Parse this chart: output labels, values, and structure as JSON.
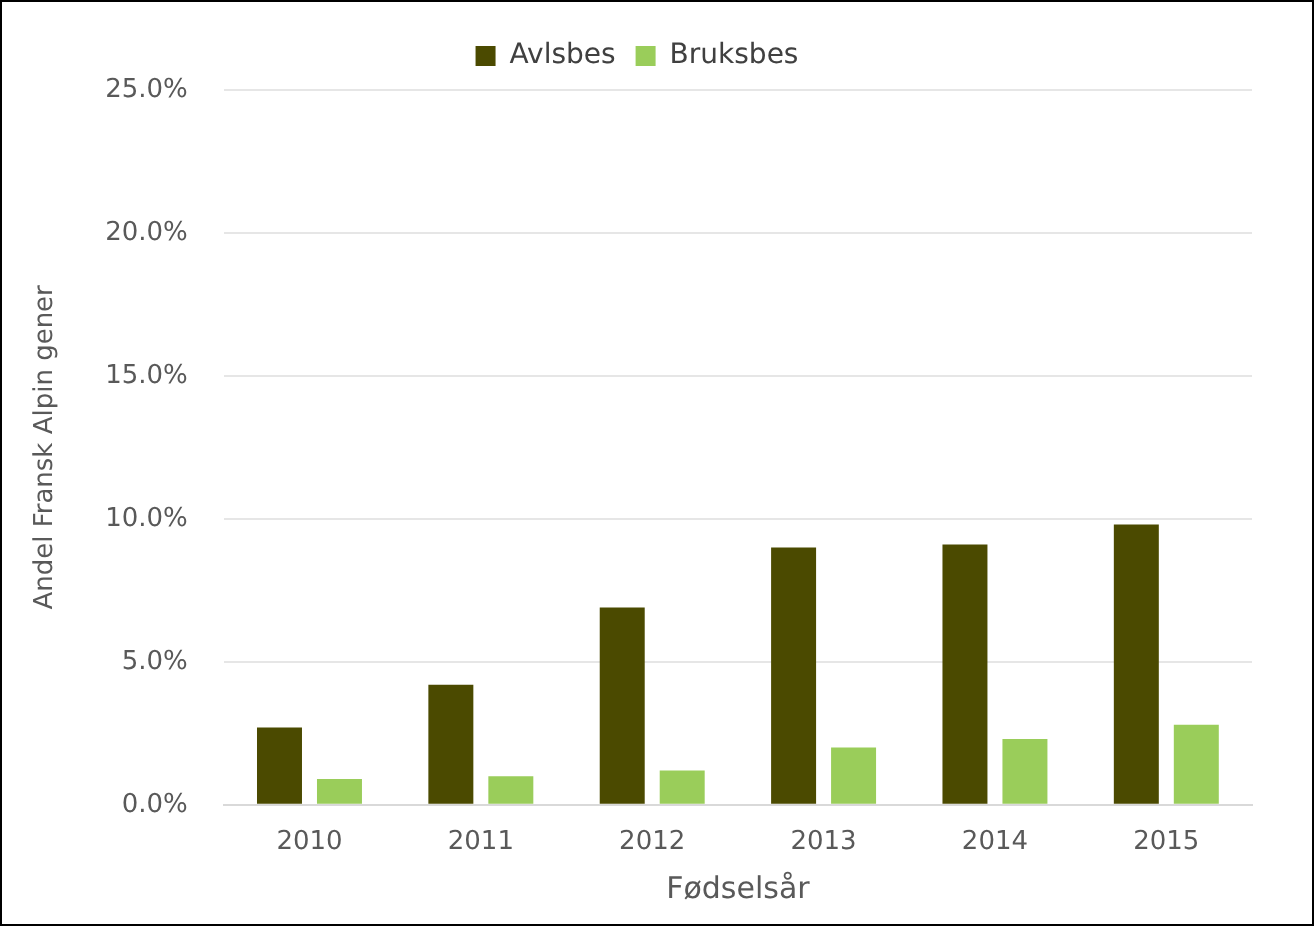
{
  "chart_data": {
    "type": "bar",
    "xlabel": "Fødselsår",
    "ylabel": "Andel Fransk Alpin gener",
    "categories": [
      "2010",
      "2011",
      "2012",
      "2013",
      "2014",
      "2015"
    ],
    "series": [
      {
        "name": "Avlsbes",
        "color": "#4b4a00",
        "values": [
          2.7,
          4.2,
          6.9,
          9.0,
          9.1,
          9.8
        ]
      },
      {
        "name": "Bruksbes",
        "color": "#9acd5a",
        "values": [
          0.9,
          1.0,
          1.2,
          2.0,
          2.3,
          2.8
        ]
      }
    ],
    "ylim": [
      0,
      25
    ],
    "yticks": [
      {
        "value": 0,
        "label": "0.0%"
      },
      {
        "value": 5,
        "label": "5.0%"
      },
      {
        "value": 10,
        "label": "10.0%"
      },
      {
        "value": 15,
        "label": "15.0%"
      },
      {
        "value": 20,
        "label": "20.0%"
      },
      {
        "value": 25,
        "label": "25.0%"
      }
    ],
    "grid": "y",
    "legend": "top"
  }
}
